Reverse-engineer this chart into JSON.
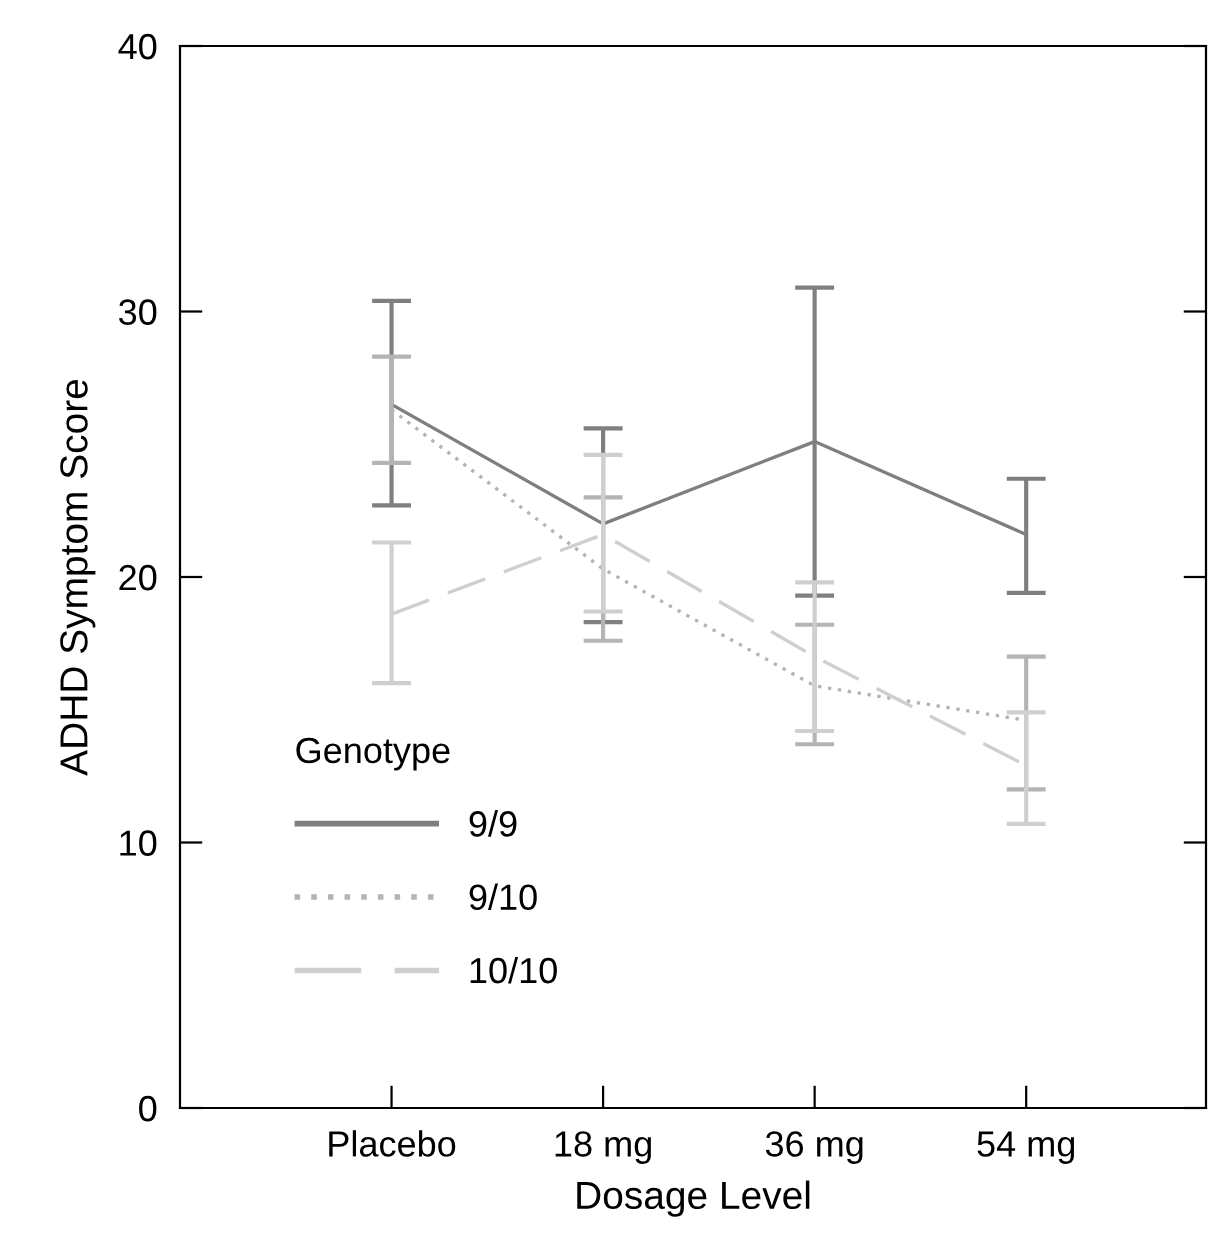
{
  "chart_data": {
    "type": "line",
    "xlabel": "Dosage Level",
    "ylabel": "ADHD Symptom Score",
    "legend_title": "Genotype",
    "legend": "bottom left",
    "grid": false,
    "marker": "none",
    "categories": [
      "Placebo",
      "18 mg",
      "36 mg",
      "54 mg"
    ],
    "ylim": [
      0,
      40
    ],
    "yticks": [
      0,
      10,
      20,
      30,
      40
    ],
    "series": [
      {
        "name": "9/9",
        "color": "#7f7f7f",
        "line_style": "solid",
        "values": [
          26.5,
          22.0,
          25.1,
          21.6
        ],
        "errors": [
          [
            22.7,
            30.4
          ],
          [
            18.3,
            25.6
          ],
          [
            19.3,
            30.9
          ],
          [
            19.4,
            23.7
          ]
        ]
      },
      {
        "name": "9/10",
        "color": "#b4b4b4",
        "line_style": "dotted",
        "values": [
          26.3,
          20.3,
          15.9,
          14.6
        ],
        "errors": [
          [
            24.3,
            28.3
          ],
          [
            17.6,
            23.0
          ],
          [
            13.7,
            18.2
          ],
          [
            12.0,
            17.0
          ]
        ]
      },
      {
        "name": "10/10",
        "color": "#cfcfcf",
        "line_style": "dashed",
        "values": [
          18.6,
          21.6,
          17.0,
          12.9
        ],
        "errors": [
          [
            16.0,
            21.3
          ],
          [
            18.7,
            24.6
          ],
          [
            14.2,
            19.8
          ],
          [
            10.7,
            14.9
          ]
        ]
      }
    ]
  }
}
